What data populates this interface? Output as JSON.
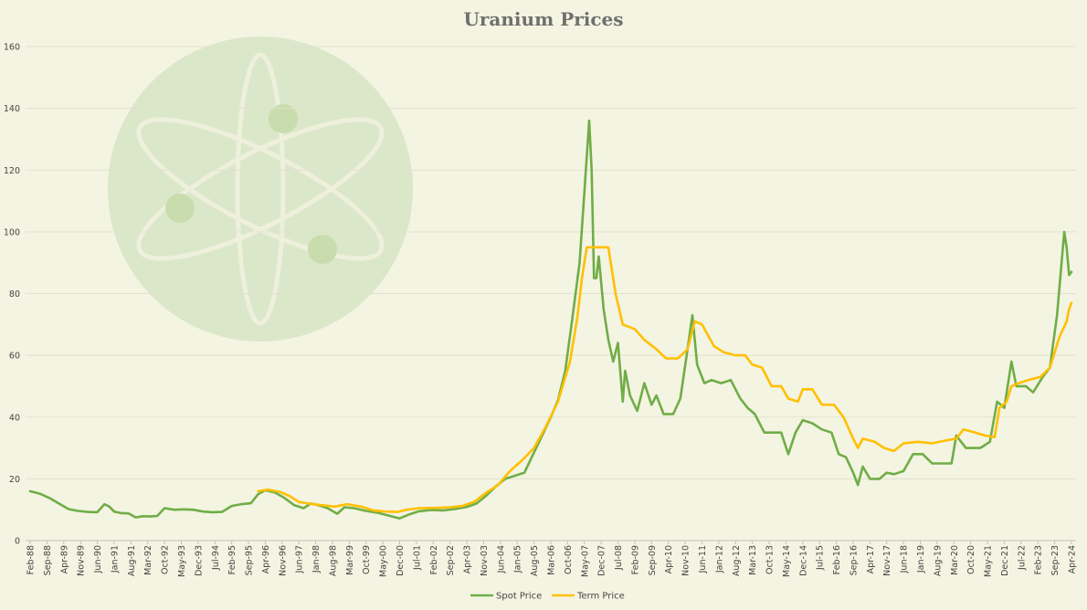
{
  "chart_data": {
    "type": "line",
    "title": "Uranium Prices",
    "xlabel": "",
    "ylabel": "",
    "ylim": [
      0,
      160
    ],
    "yticks": [
      0,
      20,
      40,
      60,
      80,
      100,
      120,
      140,
      160
    ],
    "grid": true,
    "legend_position": "bottom",
    "x_range": [
      "1988-02",
      "2024-04"
    ],
    "x_tick_labels": [
      "Feb-88",
      "Sep-88",
      "Apr-89",
      "Nov-89",
      "Jun-90",
      "Jan-91",
      "Aug-91",
      "Mar-92",
      "Oct-92",
      "May-93",
      "Dec-93",
      "Jul-94",
      "Feb-95",
      "Sep-95",
      "Apr-96",
      "Nov-96",
      "Jun-97",
      "Jan-98",
      "Aug-98",
      "Mar-99",
      "Oct-99",
      "May-00",
      "Dec-00",
      "Jul-01",
      "Feb-02",
      "Sep-02",
      "Apr-03",
      "Nov-03",
      "Jun-04",
      "Jan-05",
      "Aug-05",
      "Mar-06",
      "Oct-06",
      "May-07",
      "Dec-07",
      "Jul-08",
      "Feb-09",
      "Sep-09",
      "Apr-10",
      "Nov-10",
      "Jun-11",
      "Jan-12",
      "Aug-12",
      "Mar-13",
      "Oct-13",
      "May-14",
      "Dec-14",
      "Jul-15",
      "Feb-16",
      "Sep-16",
      "Apr-17",
      "Nov-17",
      "Jun-18",
      "Jan-19",
      "Aug-19",
      "Mar-20",
      "Oct-20",
      "May-21",
      "Dec-21",
      "Jul-22",
      "Feb-23",
      "Sep-23",
      "Apr-24"
    ],
    "series": [
      {
        "name": "Spot Price",
        "color": "#70ad47",
        "points": [
          [
            "1988-02",
            16.0
          ],
          [
            "1988-06",
            15.2
          ],
          [
            "1988-10",
            13.8
          ],
          [
            "1989-02",
            12.0
          ],
          [
            "1989-06",
            10.2
          ],
          [
            "1989-10",
            9.6
          ],
          [
            "1990-02",
            9.3
          ],
          [
            "1990-06",
            9.2
          ],
          [
            "1990-09",
            11.8
          ],
          [
            "1990-11",
            11.0
          ],
          [
            "1991-01",
            9.4
          ],
          [
            "1991-04",
            8.9
          ],
          [
            "1991-07",
            8.8
          ],
          [
            "1991-10",
            7.5
          ],
          [
            "1992-01",
            7.9
          ],
          [
            "1992-04",
            7.8
          ],
          [
            "1992-07",
            8.0
          ],
          [
            "1992-10",
            10.5
          ],
          [
            "1993-02",
            10.0
          ],
          [
            "1993-06",
            10.1
          ],
          [
            "1993-10",
            10.0
          ],
          [
            "1994-02",
            9.4
          ],
          [
            "1994-06",
            9.2
          ],
          [
            "1994-10",
            9.3
          ],
          [
            "1995-02",
            11.2
          ],
          [
            "1995-06",
            11.8
          ],
          [
            "1995-10",
            12.1
          ],
          [
            "1996-01",
            15.0
          ],
          [
            "1996-04",
            16.3
          ],
          [
            "1996-08",
            15.6
          ],
          [
            "1996-12",
            13.8
          ],
          [
            "1997-04",
            11.5
          ],
          [
            "1997-08",
            10.5
          ],
          [
            "1997-11",
            12.0
          ],
          [
            "1998-02",
            11.5
          ],
          [
            "1998-06",
            10.5
          ],
          [
            "1998-10",
            8.7
          ],
          [
            "1999-01",
            10.8
          ],
          [
            "1999-05",
            10.5
          ],
          [
            "1999-10",
            9.6
          ],
          [
            "2000-03",
            9.0
          ],
          [
            "2000-08",
            8.0
          ],
          [
            "2000-12",
            7.2
          ],
          [
            "2001-04",
            8.5
          ],
          [
            "2001-08",
            9.5
          ],
          [
            "2002-01",
            9.9
          ],
          [
            "2002-06",
            9.8
          ],
          [
            "2002-11",
            10.2
          ],
          [
            "2003-04",
            10.9
          ],
          [
            "2003-08",
            12.0
          ],
          [
            "2003-12",
            14.5
          ],
          [
            "2004-04",
            17.5
          ],
          [
            "2004-08",
            20.0
          ],
          [
            "2004-12",
            21.0
          ],
          [
            "2005-04",
            22.0
          ],
          [
            "2005-08",
            28.5
          ],
          [
            "2005-12",
            35.0
          ],
          [
            "2006-03",
            40.0
          ],
          [
            "2006-06",
            45.5
          ],
          [
            "2006-09",
            55.0
          ],
          [
            "2006-12",
            72.0
          ],
          [
            "2007-03",
            90.0
          ],
          [
            "2007-05",
            113.0
          ],
          [
            "2007-07",
            136.0
          ],
          [
            "2007-08",
            120.0
          ],
          [
            "2007-09",
            85.0
          ],
          [
            "2007-10",
            85.0
          ],
          [
            "2007-11",
            92.0
          ],
          [
            "2008-01",
            75.0
          ],
          [
            "2008-03",
            65.0
          ],
          [
            "2008-05",
            58.0
          ],
          [
            "2008-07",
            64.0
          ],
          [
            "2008-09",
            45.0
          ],
          [
            "2008-10",
            55.0
          ],
          [
            "2008-12",
            47.0
          ],
          [
            "2009-03",
            42.0
          ],
          [
            "2009-06",
            51.0
          ],
          [
            "2009-09",
            44.0
          ],
          [
            "2009-11",
            47.0
          ],
          [
            "2010-02",
            41.0
          ],
          [
            "2010-06",
            41.0
          ],
          [
            "2010-09",
            46.0
          ],
          [
            "2010-12",
            62.0
          ],
          [
            "2011-02",
            73.0
          ],
          [
            "2011-04",
            57.0
          ],
          [
            "2011-07",
            51.0
          ],
          [
            "2011-10",
            52.0
          ],
          [
            "2012-02",
            51.0
          ],
          [
            "2012-06",
            52.0
          ],
          [
            "2012-10",
            46.0
          ],
          [
            "2013-01",
            43.0
          ],
          [
            "2013-04",
            41.0
          ],
          [
            "2013-08",
            35.0
          ],
          [
            "2013-12",
            35.0
          ],
          [
            "2014-03",
            35.0
          ],
          [
            "2014-06",
            28.0
          ],
          [
            "2014-09",
            35.0
          ],
          [
            "2014-12",
            39.0
          ],
          [
            "2015-04",
            38.0
          ],
          [
            "2015-08",
            36.0
          ],
          [
            "2015-12",
            35.0
          ],
          [
            "2016-03",
            28.0
          ],
          [
            "2016-06",
            27.0
          ],
          [
            "2016-09",
            22.0
          ],
          [
            "2016-11",
            18.0
          ],
          [
            "2017-01",
            24.0
          ],
          [
            "2017-04",
            20.0
          ],
          [
            "2017-08",
            20.0
          ],
          [
            "2017-11",
            22.0
          ],
          [
            "2018-02",
            21.5
          ],
          [
            "2018-06",
            22.5
          ],
          [
            "2018-10",
            28.0
          ],
          [
            "2019-02",
            28.0
          ],
          [
            "2019-06",
            25.0
          ],
          [
            "2019-10",
            25.0
          ],
          [
            "2020-02",
            25.0
          ],
          [
            "2020-04",
            34.0
          ],
          [
            "2020-08",
            30.0
          ],
          [
            "2020-11",
            30.0
          ],
          [
            "2021-02",
            30.0
          ],
          [
            "2021-06",
            32.0
          ],
          [
            "2021-09",
            45.0
          ],
          [
            "2021-12",
            43.0
          ],
          [
            "2022-03",
            58.0
          ],
          [
            "2022-05",
            50.0
          ],
          [
            "2022-09",
            50.0
          ],
          [
            "2022-12",
            48.0
          ],
          [
            "2023-04",
            53.0
          ],
          [
            "2023-07",
            56.0
          ],
          [
            "2023-10",
            73.0
          ],
          [
            "2024-01",
            100.0
          ],
          [
            "2024-02",
            95.0
          ],
          [
            "2024-03",
            86.0
          ],
          [
            "2024-04",
            87.0
          ]
        ]
      },
      {
        "name": "Term Price",
        "color": "#ffc000",
        "points": [
          [
            "1996-01",
            16.0
          ],
          [
            "1996-05",
            16.5
          ],
          [
            "1996-10",
            15.8
          ],
          [
            "1997-02",
            14.5
          ],
          [
            "1997-06",
            12.5
          ],
          [
            "1997-10",
            12.0
          ],
          [
            "1998-03",
            11.5
          ],
          [
            "1998-09",
            11.0
          ],
          [
            "1999-02",
            11.8
          ],
          [
            "1999-08",
            11.0
          ],
          [
            "2000-01",
            9.8
          ],
          [
            "2000-06",
            9.4
          ],
          [
            "2000-11",
            9.3
          ],
          [
            "2001-03",
            10.0
          ],
          [
            "2001-08",
            10.5
          ],
          [
            "2002-03",
            10.6
          ],
          [
            "2002-09",
            10.8
          ],
          [
            "2003-02",
            11.2
          ],
          [
            "2003-07",
            12.5
          ],
          [
            "2003-12",
            15.5
          ],
          [
            "2004-05",
            18.0
          ],
          [
            "2004-10",
            22.5
          ],
          [
            "2005-03",
            26.0
          ],
          [
            "2005-08",
            30.0
          ],
          [
            "2006-01",
            37.0
          ],
          [
            "2006-06",
            45.0
          ],
          [
            "2006-11",
            58.0
          ],
          [
            "2007-02",
            72.0
          ],
          [
            "2007-04",
            85.0
          ],
          [
            "2007-06",
            95.0
          ],
          [
            "2008-03",
            95.0
          ],
          [
            "2008-06",
            80.0
          ],
          [
            "2008-09",
            70.0
          ],
          [
            "2009-02",
            68.5
          ],
          [
            "2009-06",
            65.0
          ],
          [
            "2009-11",
            62.0
          ],
          [
            "2010-03",
            59.0
          ],
          [
            "2010-08",
            59.0
          ],
          [
            "2010-12",
            62.0
          ],
          [
            "2011-03",
            71.0
          ],
          [
            "2011-06",
            70.0
          ],
          [
            "2011-11",
            63.0
          ],
          [
            "2012-03",
            61.0
          ],
          [
            "2012-08",
            60.0
          ],
          [
            "2012-12",
            60.0
          ],
          [
            "2013-03",
            57.0
          ],
          [
            "2013-07",
            56.0
          ],
          [
            "2013-11",
            50.0
          ],
          [
            "2014-03",
            50.0
          ],
          [
            "2014-06",
            46.0
          ],
          [
            "2014-10",
            45.0
          ],
          [
            "2014-12",
            49.0
          ],
          [
            "2015-04",
            49.0
          ],
          [
            "2015-08",
            44.0
          ],
          [
            "2016-01",
            44.0
          ],
          [
            "2016-05",
            40.0
          ],
          [
            "2016-09",
            33.0
          ],
          [
            "2016-11",
            30.0
          ],
          [
            "2017-01",
            33.0
          ],
          [
            "2017-06",
            32.0
          ],
          [
            "2017-10",
            30.0
          ],
          [
            "2018-02",
            29.0
          ],
          [
            "2018-06",
            31.5
          ],
          [
            "2018-12",
            32.0
          ],
          [
            "2019-06",
            31.5
          ],
          [
            "2019-12",
            32.5
          ],
          [
            "2020-04",
            33.0
          ],
          [
            "2020-07",
            36.0
          ],
          [
            "2020-12",
            35.0
          ],
          [
            "2021-04",
            34.0
          ],
          [
            "2021-08",
            33.5
          ],
          [
            "2021-10",
            43.0
          ],
          [
            "2022-01",
            45.0
          ],
          [
            "2022-03",
            50.0
          ],
          [
            "2022-06",
            51.0
          ],
          [
            "2022-10",
            52.0
          ],
          [
            "2023-03",
            53.0
          ],
          [
            "2023-07",
            56.0
          ],
          [
            "2023-11",
            66.0
          ],
          [
            "2024-02",
            71.0
          ],
          [
            "2024-03",
            75.0
          ],
          [
            "2024-04",
            77.0
          ]
        ]
      }
    ]
  },
  "decoration": {
    "icon": "atom-icon",
    "circle_color": "#dbe7c9",
    "orbit_color": "#eef0dc"
  }
}
